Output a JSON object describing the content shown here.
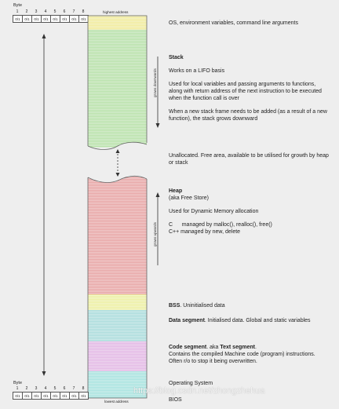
{
  "byte_block_top": {
    "label": "Byte",
    "numbers": [
      "1",
      "2",
      "3",
      "4",
      "5",
      "6",
      "7",
      "8"
    ],
    "cell_text": "0/1"
  },
  "byte_block_bottom": {
    "label": "Byte",
    "numbers": [
      "1",
      "2",
      "3",
      "4",
      "5",
      "6",
      "7",
      "8"
    ],
    "cell_text": "0/1"
  },
  "highest_address": "highest address",
  "lowest_address": "lowest address",
  "grows_downwards": "grows downwards",
  "grows_upwards": "grows upwards",
  "colors": {
    "os_top": "#f2ec9a",
    "stack": "#b7e2a8",
    "heap": "#e8a3a3",
    "bss": "#eef0a0",
    "data": "#a9dcdc",
    "code": "#e3b7e6",
    "os_bottom": "#a6e3df"
  },
  "descriptions": {
    "os_env": "OS, environment variables, command line arguments",
    "stack_title": "Stack",
    "stack_lifo": "Works on a LIFO basis",
    "stack_used": "Used for local variables and passing arguments to functions, along with return address of the next instruction to be executed when the function call is over",
    "stack_frame": "When a new stack frame needs to be added (as a result of a new function), the stack grows downward",
    "unallocated": "Unallocated. Free area, available to be utilised for growth by heap or stack",
    "heap_title": "Heap",
    "heap_aka": "(aka Free Store)",
    "heap_used": "Used for Dynamic Memory allocation",
    "heap_c": "C      managed by malloc(), realloc(), free()",
    "heap_cpp": "C++ managed by new, delete",
    "bss_title": "BSS",
    "bss_rest": ". Uninitialised data",
    "data_title": "Data segment",
    "data_rest": ". Initialised data. Global and static variables",
    "code_title": "Code segment",
    "code_mid": ". aka ",
    "code_title2": "Text segment",
    "code_rest": ".",
    "code_line2": "Contains the compiled Machine code (program) instructions.",
    "code_line3": "Often r/o to stop it being overwritten.",
    "os_bottom": "Operating System",
    "bios": "BIOS"
  },
  "watermark": "https://blog.csdn.net/zhongzhehua"
}
